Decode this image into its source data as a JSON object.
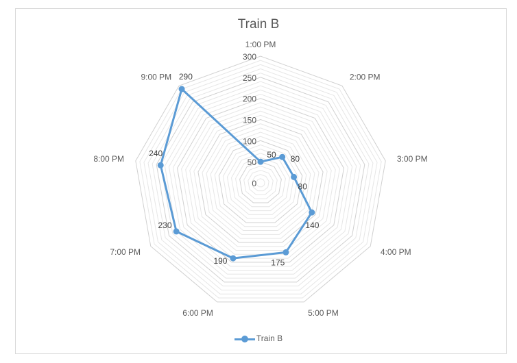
{
  "chart_data": {
    "type": "radar",
    "title": "Train B",
    "categories": [
      "1:00 PM",
      "2:00 PM",
      "3:00 PM",
      "4:00 PM",
      "5:00 PM",
      "6:00 PM",
      "7:00 PM",
      "8:00 PM",
      "9:00 PM"
    ],
    "series": [
      {
        "name": "Train B",
        "values": [
          50,
          80,
          80,
          140,
          175,
          190,
          230,
          240,
          290
        ],
        "color": "#5b9bd5"
      }
    ],
    "rlim": [
      0,
      300
    ],
    "rticks": [
      0,
      50,
      100,
      150,
      200,
      250,
      300
    ],
    "minor_step": 10,
    "legend": "bottom"
  }
}
